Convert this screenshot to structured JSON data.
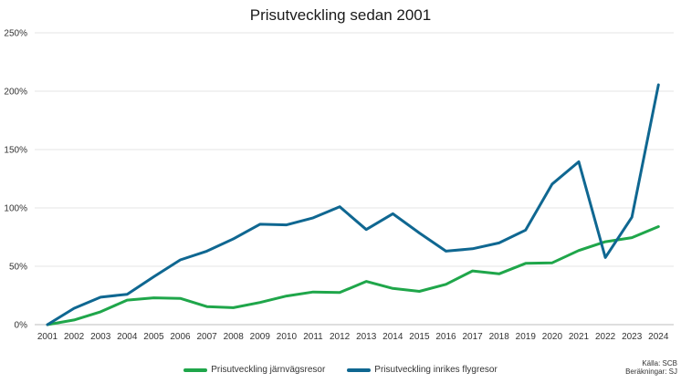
{
  "chart_data": {
    "type": "line",
    "title": "Prisutveckling sedan 2001",
    "xlabel": "",
    "ylabel": "",
    "categories": [
      "2001",
      "2002",
      "2003",
      "2004",
      "2005",
      "2006",
      "2007",
      "2008",
      "2009",
      "2010",
      "2011",
      "2012",
      "2013",
      "2014",
      "2015",
      "2016",
      "2017",
      "2018",
      "2019",
      "2020",
      "2021",
      "2022",
      "2023",
      "2024"
    ],
    "y_ticks": [
      "0%",
      "50%",
      "100%",
      "150%",
      "200%",
      "250%"
    ],
    "ylim": [
      0,
      250
    ],
    "y_unit": "%",
    "grid": "horizontal",
    "legend_position": "bottom",
    "series": [
      {
        "name": "Prisutveckling järnvägsresor",
        "color": "#1fa64a",
        "values": [
          0,
          4,
          11,
          21,
          23,
          22.5,
          15.5,
          14.5,
          19,
          24.5,
          28,
          27.5,
          37,
          31,
          28.5,
          34.5,
          46,
          43.5,
          52.5,
          53,
          63.5,
          71,
          74.5,
          84
        ]
      },
      {
        "name": "Prisutveckling inrikes flygresor",
        "color": "#0f6791",
        "values": [
          0,
          14,
          23.5,
          26,
          41,
          55.5,
          63,
          73.5,
          86,
          85.5,
          91.5,
          101,
          81.5,
          95,
          78.5,
          63,
          65,
          70,
          81,
          120.5,
          139.5,
          57.5,
          92,
          205.5
        ]
      }
    ]
  },
  "source": {
    "line1": "Källa: SCB",
    "line2": "Beräkningar: SJ"
  }
}
